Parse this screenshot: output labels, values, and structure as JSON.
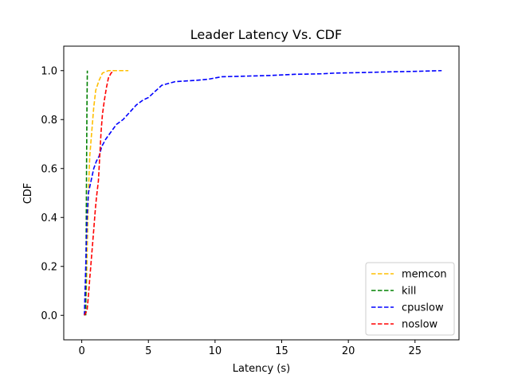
{
  "chart_data": {
    "type": "line",
    "title": "Leader Latency Vs. CDF",
    "xlabel": "Latency (s)",
    "ylabel": "CDF",
    "xlim": [
      -1.35,
      28.3
    ],
    "ylim": [
      -0.1,
      1.1
    ],
    "xticks": [
      0,
      5,
      10,
      15,
      20,
      25
    ],
    "yticks": [
      0.0,
      0.2,
      0.4,
      0.6,
      0.8,
      1.0
    ],
    "xtick_labels": [
      "0",
      "5",
      "10",
      "15",
      "20",
      "25"
    ],
    "ytick_labels": [
      "0.0",
      "0.2",
      "0.4",
      "0.6",
      "0.8",
      "1.0"
    ],
    "grid": false,
    "legend_position": "bottom-right",
    "series": [
      {
        "name": "memcon",
        "color": "#ffbf00",
        "line_style": "dashed",
        "points": [
          [
            0.2,
            0.0
          ],
          [
            0.35,
            0.1
          ],
          [
            0.42,
            0.3
          ],
          [
            0.5,
            0.5
          ],
          [
            0.6,
            0.65
          ],
          [
            0.75,
            0.75
          ],
          [
            0.9,
            0.85
          ],
          [
            1.05,
            0.92
          ],
          [
            1.3,
            0.96
          ],
          [
            1.55,
            0.99
          ],
          [
            2.0,
            1.0
          ],
          [
            3.5,
            1.0
          ]
        ]
      },
      {
        "name": "kill",
        "color": "#008000",
        "line_style": "dashed",
        "points": [
          [
            0.3,
            0.0
          ],
          [
            0.33,
            0.3
          ],
          [
            0.36,
            0.6
          ],
          [
            0.39,
            0.85
          ],
          [
            0.42,
            1.0
          ]
        ]
      },
      {
        "name": "cpuslow",
        "color": "#0000ff",
        "line_style": "dashed",
        "points": [
          [
            0.2,
            0.0
          ],
          [
            0.3,
            0.2
          ],
          [
            0.4,
            0.4
          ],
          [
            0.5,
            0.5
          ],
          [
            0.7,
            0.55
          ],
          [
            0.9,
            0.6
          ],
          [
            1.1,
            0.63
          ],
          [
            1.3,
            0.65
          ],
          [
            1.5,
            0.69
          ],
          [
            1.8,
            0.72
          ],
          [
            2.2,
            0.75
          ],
          [
            2.6,
            0.78
          ],
          [
            3.1,
            0.8
          ],
          [
            3.6,
            0.83
          ],
          [
            4.1,
            0.86
          ],
          [
            4.6,
            0.88
          ],
          [
            5.0,
            0.89
          ],
          [
            5.4,
            0.91
          ],
          [
            6.0,
            0.94
          ],
          [
            7.0,
            0.955
          ],
          [
            8.5,
            0.96
          ],
          [
            9.5,
            0.965
          ],
          [
            10.5,
            0.975
          ],
          [
            12.0,
            0.977
          ],
          [
            14.0,
            0.98
          ],
          [
            16.0,
            0.985
          ],
          [
            18.0,
            0.987
          ],
          [
            19.0,
            0.99
          ],
          [
            21.0,
            0.992
          ],
          [
            23.0,
            0.995
          ],
          [
            25.0,
            0.997
          ],
          [
            27.0,
            1.0
          ]
        ]
      },
      {
        "name": "noslow",
        "color": "#ff0000",
        "line_style": "dashed",
        "points": [
          [
            0.2,
            0.0
          ],
          [
            0.4,
            0.02
          ],
          [
            0.5,
            0.08
          ],
          [
            0.6,
            0.15
          ],
          [
            0.75,
            0.25
          ],
          [
            0.9,
            0.35
          ],
          [
            1.0,
            0.42
          ],
          [
            1.1,
            0.48
          ],
          [
            1.25,
            0.55
          ],
          [
            1.35,
            0.65
          ],
          [
            1.45,
            0.75
          ],
          [
            1.55,
            0.82
          ],
          [
            1.7,
            0.88
          ],
          [
            1.85,
            0.93
          ],
          [
            2.0,
            0.97
          ],
          [
            2.2,
            0.99
          ],
          [
            2.4,
            1.0
          ]
        ]
      }
    ]
  }
}
